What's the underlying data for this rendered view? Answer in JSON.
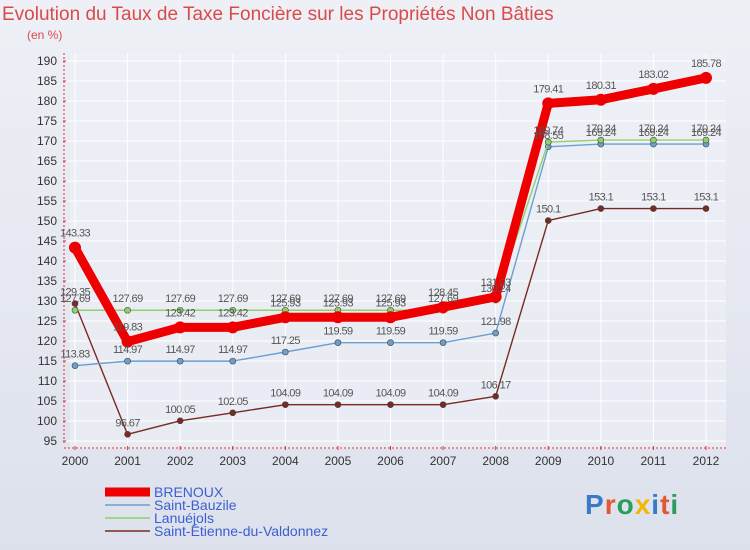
{
  "title": "Evolution du Taux de Taxe Foncière sur les Propriétés Non Bâties",
  "unit": "(en %)",
  "brand": {
    "text": "Proxiti",
    "colors": [
      "#3a78c9",
      "#e4572e",
      "#2a9d5c",
      "#f2b705",
      "#3a78c9",
      "#e4572e",
      "#2a9d5c"
    ]
  },
  "chart_data": {
    "type": "line",
    "title": "Evolution du Taux de Taxe Foncière sur les Propriétés Non Bâties",
    "ylabel": "(en %)",
    "xlabel": "",
    "x": [
      "2000",
      "2001",
      "2002",
      "2003",
      "2004",
      "2005",
      "2006",
      "2007",
      "2008",
      "2009",
      "2010",
      "2011",
      "2012"
    ],
    "ylim": [
      95,
      190
    ],
    "yticks": [
      95,
      100,
      105,
      110,
      115,
      120,
      125,
      130,
      135,
      140,
      145,
      150,
      155,
      160,
      165,
      170,
      175,
      180,
      185,
      190
    ],
    "grid": true,
    "legend": "bottom-left",
    "series": [
      {
        "name": "BRENOUX",
        "color": "#ee0000",
        "values": [
          143.33,
          119.83,
          123.42,
          123.42,
          125.93,
          125.93,
          125.93,
          128.45,
          131.03,
          179.41,
          180.31,
          183.02,
          185.78
        ],
        "labels": [
          "143.33",
          "119.83",
          "123.42",
          "123.42",
          "125.93",
          "125.93",
          "125.93",
          "128.45",
          "131.03",
          "179.41",
          "180.31",
          "183.02",
          "185.78"
        ]
      },
      {
        "name": "Saint-Bauzile",
        "color": "#6a9fd0",
        "values": [
          113.83,
          114.97,
          114.97,
          114.97,
          117.25,
          119.59,
          119.59,
          119.59,
          121.98,
          168.55,
          169.24,
          169.24,
          169.24
        ],
        "labels": [
          "113.83",
          "114.97",
          "114.97",
          "114.97",
          "117.25",
          "119.59",
          "119.59",
          "119.59",
          "121.98",
          "168.55",
          "169.24",
          "169.24",
          "169.24"
        ]
      },
      {
        "name": "Lanuéjols",
        "color": "#8fd16a",
        "values": [
          127.69,
          127.69,
          127.69,
          127.69,
          127.69,
          127.69,
          127.69,
          127.69,
          130.24,
          169.74,
          170.24,
          170.24,
          170.24
        ],
        "labels": [
          "127.69",
          "127.69",
          "127.69",
          "127.69",
          "127.69",
          "127.69",
          "127.69",
          "127.69",
          "130.24",
          "169.74",
          "170.24",
          "170.24",
          "170.24"
        ]
      },
      {
        "name": "Saint-Étienne-du-Valdonnez",
        "color": "#7a2a22",
        "values": [
          129.35,
          96.67,
          100.05,
          102.05,
          104.09,
          104.09,
          104.09,
          104.09,
          106.17,
          150.1,
          153.1,
          153.1,
          153.1
        ],
        "labels": [
          "129.35",
          "96.67",
          "100.05",
          "102.05",
          "104.09",
          "104.09",
          "104.09",
          "104.09",
          "106.17",
          "150.1",
          "153.1",
          "153.1",
          "153.1"
        ]
      }
    ]
  }
}
